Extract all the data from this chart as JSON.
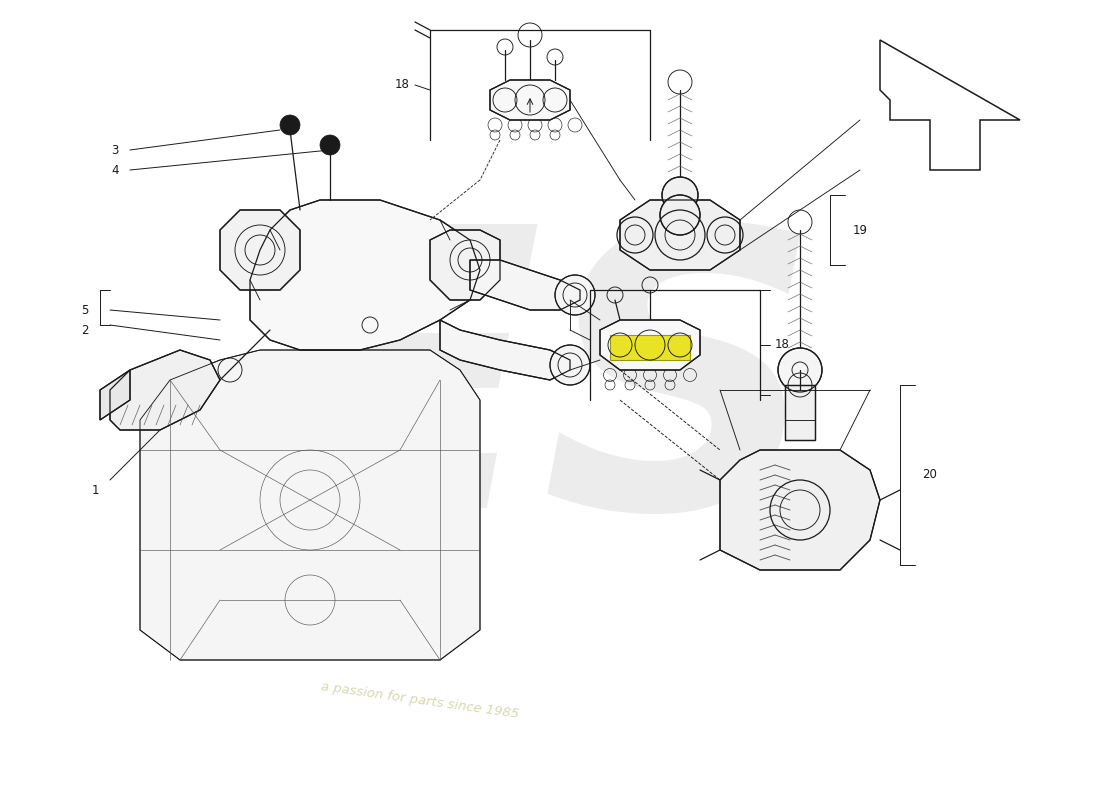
{
  "bg_color": "#ffffff",
  "lc": "#1a1a1a",
  "lc_light": "#888888",
  "lc_med": "#555555",
  "highlight_yellow": "#e8e000",
  "highlight_edge": "#888800",
  "wm_color": "#ececec",
  "wm_text": "#d8d8b0",
  "figsize": [
    11.0,
    8.0
  ],
  "dpi": 100,
  "xlim": [
    0,
    110
  ],
  "ylim": [
    0,
    80
  ]
}
